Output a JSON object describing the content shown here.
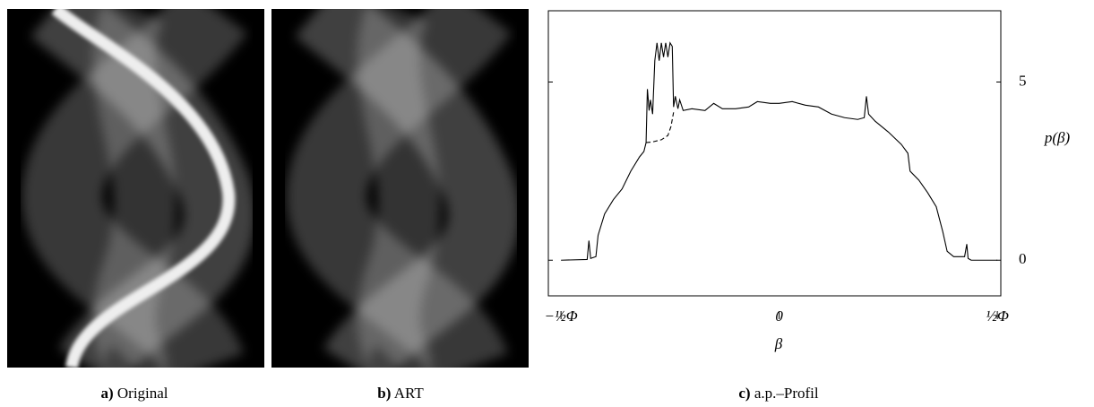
{
  "panels": [
    {
      "letter": "a)",
      "caption": "Original"
    },
    {
      "letter": "b)",
      "caption": "ART"
    }
  ],
  "chart_data": {
    "type": "line",
    "letter": "c)",
    "caption": "a.p.–Profil",
    "xlabel": "β",
    "ylabel": "p(β)",
    "xlim": [
      -0.529,
      0.508
    ],
    "ylim": [
      -1,
      7
    ],
    "xticks": [
      {
        "value": -0.5,
        "label": "−½Φ"
      },
      0,
      {
        "value": 0.5,
        "label": "½Φ"
      }
    ],
    "yticks": [
      0,
      5
    ],
    "series": [
      {
        "color": "#000000",
        "dash": false,
        "x": [
          -0.5,
          -0.44,
          -0.436,
          -0.432,
          -0.42,
          -0.415,
          -0.4,
          -0.38,
          -0.36,
          -0.34,
          -0.32,
          -0.31,
          -0.305,
          -0.302,
          -0.298,
          -0.295,
          -0.29,
          -0.285,
          -0.28,
          -0.275,
          -0.27,
          -0.265,
          -0.26,
          -0.255,
          -0.25,
          -0.245,
          -0.242,
          -0.238,
          -0.232,
          -0.228,
          -0.22,
          -0.2,
          -0.17,
          -0.15,
          -0.13,
          -0.1,
          -0.07,
          -0.05,
          -0.02,
          0,
          0.03,
          0.06,
          0.09,
          0.12,
          0.15,
          0.18,
          0.195,
          0.2,
          0.205,
          0.22,
          0.25,
          0.28,
          0.295,
          0.3,
          0.32,
          0.34,
          0.36,
          0.375,
          0.385,
          0.4,
          0.425,
          0.43,
          0.433,
          0.44,
          0.5
        ],
        "values": [
          0,
          0.02,
          0.55,
          0.05,
          0.1,
          0.7,
          1.3,
          1.7,
          2.0,
          2.5,
          2.9,
          3.05,
          3.3,
          4.8,
          4.2,
          4.5,
          4.1,
          5.6,
          6.1,
          5.6,
          6.1,
          5.7,
          6.1,
          5.7,
          6.1,
          6.0,
          4.3,
          4.6,
          4.25,
          4.5,
          4.2,
          4.25,
          4.2,
          4.4,
          4.25,
          4.25,
          4.3,
          4.45,
          4.4,
          4.4,
          4.45,
          4.35,
          4.3,
          4.1,
          4.0,
          3.95,
          4.0,
          4.6,
          4.1,
          3.9,
          3.6,
          3.25,
          3.0,
          2.5,
          2.25,
          1.9,
          1.5,
          0.8,
          0.25,
          0.1,
          0.1,
          0.45,
          0.05,
          0,
          0
        ]
      },
      {
        "color": "#000000",
        "dash": true,
        "x": [
          -0.305,
          -0.29,
          -0.27,
          -0.255,
          -0.248,
          -0.242
        ],
        "values": [
          3.3,
          3.32,
          3.38,
          3.5,
          3.75,
          4.15
        ]
      }
    ]
  }
}
